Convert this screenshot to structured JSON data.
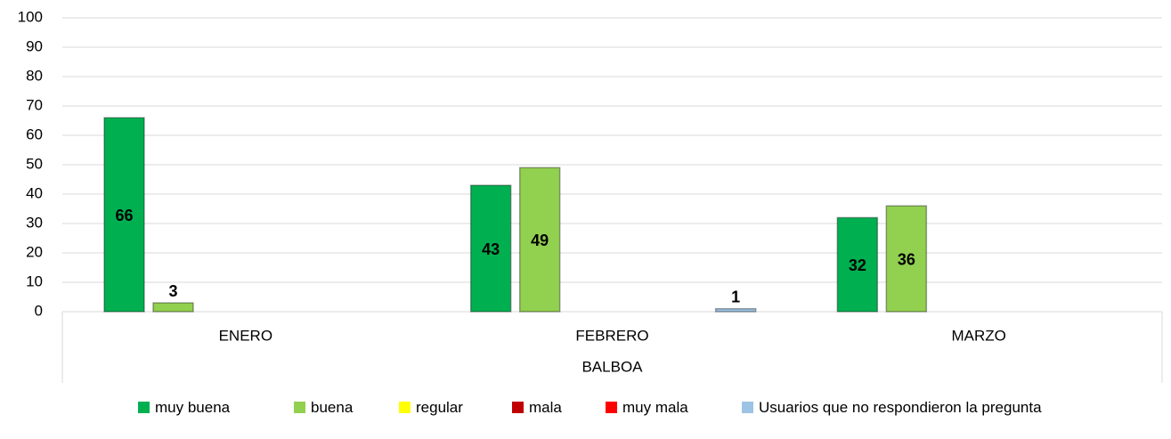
{
  "chart_data": {
    "type": "bar",
    "categories": [
      "ENERO",
      "FEBRERO",
      "MARZO"
    ],
    "group_label": "BALBOA",
    "series": [
      {
        "name": "muy buena",
        "color": "#00b050",
        "values": [
          66,
          43,
          32
        ]
      },
      {
        "name": "buena",
        "color": "#92d050",
        "values": [
          3,
          49,
          36
        ]
      },
      {
        "name": "regular",
        "color": "#ffff00",
        "values": [
          null,
          null,
          null
        ]
      },
      {
        "name": "mala",
        "color": "#c00000",
        "values": [
          null,
          null,
          null
        ]
      },
      {
        "name": "muy mala",
        "color": "#ff0000",
        "values": [
          null,
          null,
          null
        ]
      },
      {
        "name": "Usuarios que no respondieron la pregunta",
        "color": "#9dc3e6",
        "values": [
          null,
          1,
          null
        ]
      }
    ],
    "ylim": [
      0,
      100
    ],
    "yticks": [
      0,
      10,
      20,
      30,
      40,
      50,
      60,
      70,
      80,
      90,
      100
    ],
    "grid": true,
    "legend": "bottom"
  }
}
